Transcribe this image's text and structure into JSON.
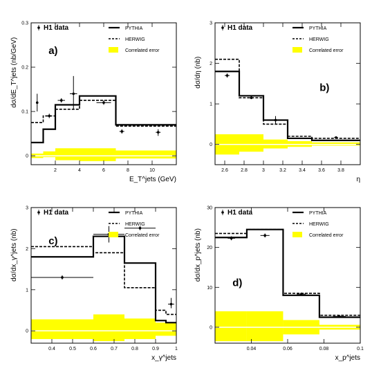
{
  "figure": {
    "legend_labels": {
      "h1": "H1 data",
      "pythia": "PYTHIA",
      "herwig": "HERWIG",
      "correlated": "Correlated error"
    },
    "colors": {
      "correlated_band": "#ffff00",
      "zero_line": "#ffffff",
      "ink": "#000000"
    }
  },
  "chart_data": [
    {
      "panel": "a)",
      "type": "step+errorbar",
      "ylabel": "dσ/dE_T^jets (nb/GeV)",
      "xlabel": "E_T^jets (GeV)",
      "xlim": [
        0,
        12
      ],
      "ylim": [
        -0.02,
        0.3
      ],
      "xticks": [
        "2",
        "4",
        "6",
        "8",
        "10"
      ],
      "yticks": [
        "0",
        "0.1",
        "0.2",
        "0.3"
      ],
      "bins": [
        0,
        1,
        2,
        4,
        7,
        12
      ],
      "pythia": [
        0.03,
        0.06,
        0.115,
        0.135,
        0.07
      ],
      "herwig": [
        0.075,
        0.09,
        0.105,
        0.125,
        0.067
      ],
      "correlated": [
        [
          -0.005,
          0.005
        ],
        [
          -0.003,
          0.01
        ],
        [
          -0.01,
          0.017
        ],
        [
          -0.012,
          0.017
        ],
        [
          -0.006,
          0.012
        ]
      ],
      "data": [
        {
          "x": 0.5,
          "y": 0.12,
          "ylo": 0.1,
          "yhi": 0.14,
          "xlo": 0.4,
          "xhi": 0.6
        },
        {
          "x": 1.5,
          "y": 0.09,
          "ylo": 0.085,
          "yhi": 0.095,
          "xlo": 1.3,
          "xhi": 1.7
        },
        {
          "x": 2.5,
          "y": 0.125,
          "ylo": 0.12,
          "yhi": 0.13,
          "xlo": 2.2,
          "xhi": 2.8
        },
        {
          "x": 3.5,
          "y": 0.14,
          "ylo": 0.105,
          "yhi": 0.18,
          "xlo": 3.2,
          "xhi": 3.8
        },
        {
          "x": 6.0,
          "y": 0.12,
          "ylo": 0.115,
          "yhi": 0.125,
          "xlo": 5.4,
          "xhi": 6.6
        },
        {
          "x": 7.5,
          "y": 0.055,
          "ylo": 0.05,
          "yhi": 0.06,
          "xlo": 7.3,
          "xhi": 7.7
        },
        {
          "x": 10.5,
          "y": 0.053,
          "ylo": 0.045,
          "yhi": 0.06,
          "xlo": 10.3,
          "xhi": 10.7
        }
      ]
    },
    {
      "panel": "b)",
      "type": "step+errorbar",
      "ylabel": "dσ/dη (nb)",
      "xlabel": "η",
      "xlim": [
        2.5,
        4.0
      ],
      "ylim": [
        -0.5,
        3
      ],
      "xticks": [
        "2.6",
        "2.8",
        "3",
        "3.2",
        "3.4",
        "3.6",
        "3.8"
      ],
      "yticks": [
        "0",
        "1",
        "2",
        "3"
      ],
      "bins": [
        2.5,
        2.75,
        3.0,
        3.25,
        3.5,
        4.0
      ],
      "pythia": [
        1.8,
        1.2,
        0.6,
        0.15,
        0.1
      ],
      "herwig": [
        2.1,
        1.15,
        0.5,
        0.2,
        0.15
      ],
      "correlated": [
        [
          -0.25,
          0.25
        ],
        [
          -0.18,
          0.25
        ],
        [
          -0.1,
          0.12
        ],
        [
          -0.06,
          0.08
        ],
        [
          -0.03,
          0.05
        ]
      ],
      "data": [
        {
          "x": 2.625,
          "y": 1.7,
          "ylo": 1.65,
          "yhi": 1.75,
          "xlo": 2.6,
          "xhi": 2.65
        },
        {
          "x": 2.875,
          "y": 1.15,
          "ylo": 1.12,
          "yhi": 1.18,
          "xlo": 2.85,
          "xhi": 2.9
        },
        {
          "x": 3.125,
          "y": 0.6,
          "ylo": 0.5,
          "yhi": 0.7,
          "xlo": 3.1,
          "xhi": 3.15
        },
        {
          "x": 3.75,
          "y": 0.17,
          "ylo": 0.15,
          "yhi": 0.19,
          "xlo": 3.73,
          "xhi": 3.77
        }
      ]
    },
    {
      "panel": "c)",
      "type": "step+errorbar",
      "ylabel": "dσ/dx_γ^jets (nb)",
      "xlabel": "x_γ^jets",
      "xlim": [
        0.3,
        1.0
      ],
      "ylim": [
        -0.3,
        3
      ],
      "xticks": [
        "0.4",
        "0.5",
        "0.6",
        "0.7",
        "0.8",
        "0.9",
        "1"
      ],
      "yticks": [
        "0",
        "1",
        "2",
        "3"
      ],
      "bins": [
        0.3,
        0.6,
        0.75,
        0.9,
        0.95,
        1.0
      ],
      "pythia": [
        1.8,
        2.3,
        1.65,
        0.25,
        0.2
      ],
      "herwig": [
        2.05,
        1.9,
        1.05,
        0.5,
        0.4
      ],
      "correlated": [
        [
          -0.2,
          0.28
        ],
        [
          -0.25,
          0.4
        ],
        [
          -0.2,
          0.3
        ],
        [
          -0.12,
          0.2
        ],
        [
          -0.12,
          0.2
        ]
      ],
      "data": [
        {
          "x": 0.45,
          "y": 1.3,
          "ylo": 1.25,
          "yhi": 1.35,
          "xlo": 0.3,
          "xhi": 0.6
        },
        {
          "x": 0.675,
          "y": 2.35,
          "ylo": 2.15,
          "yhi": 2.55,
          "xlo": 0.6,
          "xhi": 0.75
        },
        {
          "x": 0.825,
          "y": 2.5,
          "ylo": 2.45,
          "yhi": 2.55,
          "xlo": 0.75,
          "xhi": 0.9
        },
        {
          "x": 0.975,
          "y": 0.65,
          "ylo": 0.55,
          "yhi": 0.8,
          "xlo": 0.96,
          "xhi": 0.99
        }
      ]
    },
    {
      "panel": "d)",
      "type": "step+errorbar",
      "ylabel": "dσ/dx_p^jets (nb)",
      "xlabel": "x_p^jets",
      "xlim": [
        0.02,
        0.1
      ],
      "ylim": [
        -4,
        30
      ],
      "xticks": [
        "0.04",
        "0.06",
        "0.08",
        "0.1"
      ],
      "yticks": [
        "0",
        "10",
        "20",
        "30"
      ],
      "bins": [
        0.02,
        0.0375,
        0.0575,
        0.0775,
        0.1
      ],
      "pythia": [
        22.5,
        24.5,
        8.0,
        2.5
      ],
      "herwig": [
        23.5,
        24.5,
        8.5,
        3.0
      ],
      "correlated": [
        [
          -3.5,
          4.0
        ],
        [
          -3.5,
          4.0
        ],
        [
          -1.8,
          1.8
        ],
        [
          -0.6,
          0.6
        ]
      ],
      "data": [
        {
          "x": 0.029,
          "y": 22.3,
          "ylo": 21.8,
          "yhi": 22.8,
          "xlo": 0.027,
          "xhi": 0.031
        },
        {
          "x": 0.0475,
          "y": 23.0,
          "ylo": 22.5,
          "yhi": 23.5,
          "xlo": 0.045,
          "xhi": 0.05
        },
        {
          "x": 0.0675,
          "y": 8.3,
          "ylo": 7.9,
          "yhi": 8.7,
          "xlo": 0.065,
          "xhi": 0.07
        },
        {
          "x": 0.0885,
          "y": 2.7,
          "ylo": 2.4,
          "yhi": 3.0,
          "xlo": 0.085,
          "xhi": 0.092
        }
      ]
    }
  ]
}
